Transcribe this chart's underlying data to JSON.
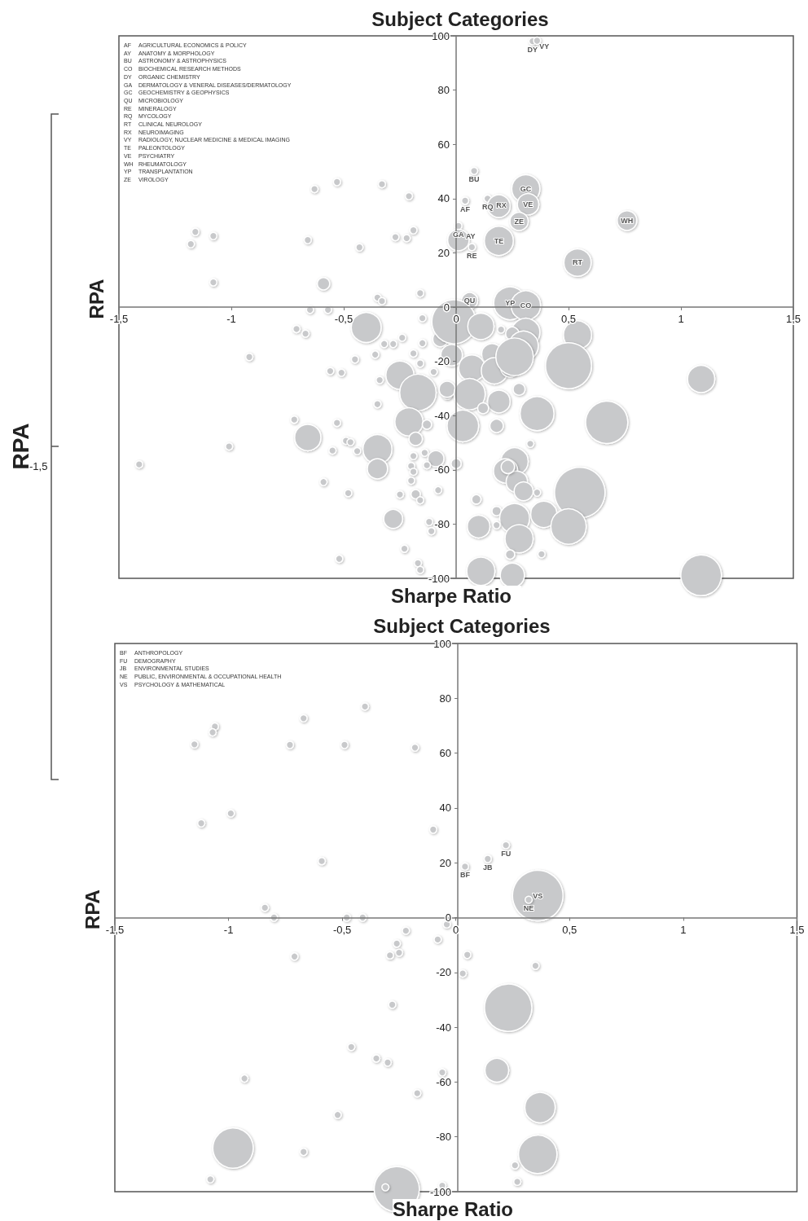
{
  "chart_data": [
    {
      "type": "bubble",
      "title": "Subject Categories",
      "xlabel": "Sharpe Ratio",
      "ylabel": "RPA",
      "color": "#c8c9cb",
      "marker": "circle",
      "xlim": [
        -1.5,
        1.5
      ],
      "xticks": [
        {
          "value": -1.5,
          "label": "-1,5"
        },
        -1,
        {
          "value": -0.5,
          "label": "-0,5"
        },
        0,
        {
          "value": 0.5,
          "label": "0,5"
        },
        1,
        {
          "value": 1.5,
          "label": "1,5"
        }
      ],
      "ylim": [
        -100,
        100
      ],
      "yticks": [
        -100,
        -80,
        -60,
        -40,
        -20,
        0,
        20,
        40,
        60,
        80,
        100
      ],
      "x": [
        -0.63,
        -0.53,
        -0.33,
        -0.21,
        -1.16,
        -1.08,
        -1.18,
        -0.66,
        -0.43,
        -0.27,
        -0.22,
        -0.19,
        -1.08,
        -0.59,
        -0.35,
        -0.33,
        -0.16,
        -0.65,
        -0.57,
        -0.71,
        -0.67,
        -0.4,
        -0.32,
        -0.28,
        -0.24,
        -0.15,
        -0.15,
        -0.19,
        -0.45,
        -0.36,
        -0.92,
        -0.56,
        -0.51,
        -0.16,
        -0.1,
        -0.34,
        -0.25,
        -0.17,
        -0.07,
        -0.04,
        -0.04,
        -0.35,
        -0.72,
        -0.53,
        -0.21,
        -0.13,
        -0.18,
        -0.66,
        -1.01,
        -0.55,
        -0.49,
        -0.47,
        -0.44,
        -0.35,
        -0.35,
        -0.19,
        -0.14,
        -0.09,
        -0.2,
        -0.19,
        -0.13,
        -1.41,
        0,
        -0.59,
        -0.2,
        -0.48,
        -0.25,
        -0.18,
        -0.16,
        -0.08,
        -0.28,
        -0.12,
        -0.11,
        -0.23,
        -0.52,
        -0.17,
        -0.16,
        0.34,
        0.36,
        0.08,
        0.04,
        0.14,
        0.19,
        0.31,
        0.32,
        0.28,
        0.76,
        0.01,
        0.01,
        0.07,
        0.19,
        0.54,
        0.06,
        0.24,
        0.31,
        -0.01,
        0.11,
        0.2,
        0.31,
        0.25,
        0.3,
        -0.02,
        0.16,
        0.07,
        0.17,
        0.24,
        0.26,
        0.28,
        0.06,
        0.19,
        0.12,
        0.03,
        0.18,
        0.36,
        0.54,
        0.5,
        1.09,
        0.67,
        0.33,
        0.26,
        0.22,
        0.27,
        0.3,
        0.36,
        0.55,
        0.09,
        0.18,
        0.26,
        0.39,
        0.5,
        0.1,
        0.18,
        0.28,
        0.24,
        0.38,
        0.11,
        0.25,
        1.09,
        0.23
      ],
      "values": [
        43.5,
        46.1,
        45.3,
        40.9,
        27.7,
        26.2,
        23.2,
        24.7,
        22,
        25.8,
        25.4,
        28.3,
        9.1,
        8.6,
        3.5,
        2.2,
        5.1,
        -1,
        -1,
        -8.1,
        -9.8,
        -7.5,
        -13.6,
        -13.6,
        -11.3,
        -4.1,
        -13.3,
        -17.1,
        -19.3,
        -17.5,
        -18.4,
        -23.6,
        -24.2,
        -20.8,
        -23.9,
        -26.9,
        -25.1,
        -31.5,
        -11.8,
        -32.3,
        -30.3,
        -35.8,
        -41.5,
        -42.7,
        -42.3,
        -43.3,
        -48.6,
        -48.1,
        -51.4,
        -52.9,
        -49.3,
        -49.8,
        -53.1,
        -52.4,
        -59.6,
        -54.9,
        -53.7,
        -55.9,
        -58.6,
        -60.7,
        -58.3,
        -58,
        -57.7,
        -64.5,
        -64,
        -68.6,
        -69.1,
        -69,
        -71.2,
        -67.5,
        -78.1,
        -79.2,
        -82.6,
        -89.1,
        -92.8,
        -94.4,
        -96.9,
        98,
        98.2,
        50.2,
        39.2,
        40,
        37.2,
        43.6,
        37.9,
        31.6,
        31.9,
        29.9,
        24.7,
        22.1,
        24.4,
        16.4,
        2.4,
        1.4,
        0.6,
        -5.4,
        -7.1,
        -8.3,
        -9.3,
        -9.8,
        -14.3,
        -17.7,
        -17.3,
        -22.5,
        -23.5,
        -22.3,
        -18.3,
        -30.3,
        -32.1,
        -34.8,
        -37.3,
        -43.8,
        -43.8,
        -39.3,
        -10.3,
        -21.6,
        -26.5,
        -42.5,
        -50.4,
        -56.9,
        -60.4,
        -64.4,
        -67.9,
        -68.4,
        -68.4,
        -70.9,
        -75.2,
        -77.9,
        -76.4,
        -80.9,
        -80.9,
        -80.4,
        -85.4,
        -91.2,
        -91.1,
        -97.4,
        -98.9,
        -98.9,
        -58.9
      ],
      "sizes": [
        0.02,
        0.02,
        0.02,
        0.02,
        0.02,
        0.02,
        0.02,
        0.02,
        0.02,
        0.02,
        0.02,
        0.02,
        0.02,
        0.06,
        0.02,
        0.02,
        0.02,
        0.02,
        0.02,
        0.02,
        0.02,
        0.35,
        0.02,
        0.02,
        0.02,
        0.02,
        0.02,
        0.02,
        0.02,
        0.02,
        0.02,
        0.02,
        0.02,
        0.02,
        0.02,
        0.02,
        0.31,
        0.52,
        0.09,
        0.034,
        0.1,
        0.02,
        0.02,
        0.02,
        0.31,
        0.034,
        0.07,
        0.27,
        0.02,
        0.02,
        0.02,
        0.02,
        0.02,
        0.33,
        0.16,
        0.02,
        0.02,
        0.1,
        0.02,
        0.02,
        0.02,
        0.02,
        0.04,
        0.02,
        0.02,
        0.02,
        0.02,
        0.034,
        0.02,
        0.02,
        0.14,
        0.02,
        0.02,
        0.02,
        0.02,
        0.02,
        0.02,
        0.02,
        0.02,
        0.02,
        0.02,
        0.02,
        0.2,
        0.31,
        0.18,
        0.13,
        0.15,
        0.02,
        0.18,
        0.02,
        0.33,
        0.29,
        0.1,
        0.42,
        0.34,
        0.76,
        0.27,
        0.02,
        0.31,
        0.07,
        0.34,
        0.18,
        0.17,
        0.27,
        0.27,
        0.14,
        0.55,
        0.055,
        0.38,
        0.2,
        0.046,
        0.39,
        0.07,
        0.45,
        0.31,
        0.83,
        0.29,
        0.7,
        0.02,
        0.29,
        0.23,
        0.18,
        0.14,
        0.02,
        1,
        0.034,
        0.034,
        0.35,
        0.27,
        0.49,
        0.2,
        0.02,
        0.31,
        0.034,
        0.02,
        0.31,
        0.23,
        0.65,
        0.07
      ],
      "relative": false,
      "annotations": [
        "AF AGRICULTURAL ECONOMICS & POLICY",
        "AY ANATOMY & MORPHOLOGY",
        "BU ASTRONOMY & ASTROPHYSICS",
        "CO BIOCHEMICAL RESEARCH METHODS",
        "DY ORGANIC CHEMISTRY",
        "GA DERMATOLOGY & VENERAL DISEASES/DERMATOLOGY",
        "GC GEOCHEMISTRY & GEOPHYSICS",
        "QU MICROBIOLOGY",
        "RE MINERALOGY",
        "RQ MYCOLOGY",
        "RT CLINICAL NEUROLOGY",
        "RX NEUROIMAGING",
        "VY RADIOLOGY, NUCLEAR MEDICINE & MEDICAL IMAGING",
        "TE PALEONTOLOGY",
        "VE PSYCHIATRY",
        "WH RHEUMATOLOGY",
        "YP TRANSPLANTATION",
        "ZE VIROLOGY",
        {
          "text": "DY",
          "x": 0.34,
          "y": 98
        },
        {
          "text": "VY",
          "x": 0.36,
          "y": 98.2
        },
        {
          "text": "BU",
          "x": 0.08,
          "y": 50.2
        },
        {
          "text": "AF",
          "x": 0.04,
          "y": 39.2
        },
        {
          "text": "RQ",
          "x": 0.14,
          "y": 40
        },
        {
          "text": "RX",
          "x": 0.19,
          "y": 37.2
        },
        {
          "text": "GC",
          "x": 0.31,
          "y": 43.6
        },
        {
          "text": "VE",
          "x": 0.32,
          "y": 37.9
        },
        {
          "text": "ZE",
          "x": 0.28,
          "y": 31.6
        },
        {
          "text": "WH",
          "x": 0.76,
          "y": 31.9
        },
        {
          "text": "GA",
          "x": 0.01,
          "y": 29.9
        },
        {
          "text": "AY",
          "x": 0.01,
          "y": 24.7
        },
        {
          "text": "RE",
          "x": 0.07,
          "y": 22.1
        },
        {
          "text": "TE",
          "x": 0.19,
          "y": 24.4
        },
        {
          "text": "RT",
          "x": 0.54,
          "y": 16.4
        },
        {
          "text": "QU",
          "x": 0.06,
          "y": 2.4
        },
        {
          "text": "YP",
          "x": 0.24,
          "y": 1.4
        },
        {
          "text": "CO",
          "x": 0.31,
          "y": 0.6
        }
      ]
    },
    {
      "type": "bubble",
      "title": "Subject Categories",
      "xlabel": "Sharpe Ratio",
      "ylabel": "RPA",
      "color": "#c8c9cb",
      "marker": "circle",
      "xlim": [
        -1.5,
        1.5
      ],
      "xticks": [
        {
          "value": -1.5,
          "label": "-1,5"
        },
        -1,
        {
          "value": -0.5,
          "label": "-0,5"
        },
        0,
        {
          "value": 0.5,
          "label": "0,5"
        },
        1,
        {
          "value": 1.5,
          "label": "1,5"
        }
      ],
      "ylim": [
        -100,
        100
      ],
      "yticks": [
        -100,
        -80,
        -60,
        -40,
        -20,
        0,
        20,
        40,
        60,
        80,
        100
      ],
      "x": [
        -0.4,
        -0.67,
        -1.06,
        -1.07,
        -1.15,
        -0.73,
        -0.49,
        -0.18,
        -0.99,
        -1.12,
        -0.1,
        -0.59,
        -0.84,
        -0.8,
        -0.48,
        -0.41,
        -0.04,
        -0.22,
        -0.08,
        -0.26,
        -0.25,
        -0.29,
        -0.71,
        -0.28,
        -0.46,
        -0.35,
        -0.3,
        -0.06,
        -0.93,
        -0.17,
        -0.52,
        -0.67,
        -1.08,
        -0.98,
        -0.26,
        -0.31,
        -0.06,
        0.22,
        0.14,
        0.04,
        0.36,
        0.32,
        0.05,
        0.03,
        0.35,
        0.23,
        0.18,
        0.37,
        0.36,
        0.26,
        0.27
      ],
      "values": [
        77,
        72.7,
        69.7,
        67.6,
        63.2,
        63,
        63,
        62,
        38,
        34.4,
        32.1,
        20.6,
        3.6,
        0,
        0,
        0,
        -2.5,
        -4.8,
        -8,
        -9.5,
        -12.8,
        -13.8,
        -14.2,
        -31.8,
        -47.2,
        -51.4,
        -52.9,
        -56.5,
        -58.7,
        -64.1,
        -72,
        -85.5,
        -95.5,
        -84.1,
        -99.1,
        -98.4,
        -97.8,
        26.4,
        21.4,
        18.6,
        8,
        6.5,
        -13.6,
        -20.4,
        -17.6,
        -32.9,
        -55.7,
        -69.3,
        -86.4,
        -90.4,
        -96.4
      ],
      "sizes": [
        0.02,
        0.02,
        0.02,
        0.02,
        0.02,
        0.02,
        0.02,
        0.02,
        0.02,
        0.02,
        0.02,
        0.02,
        0.02,
        0.02,
        0.02,
        0.02,
        0.02,
        0.02,
        0.02,
        0.02,
        0.02,
        0.02,
        0.02,
        0.02,
        0.02,
        0.02,
        0.02,
        0.02,
        0.02,
        0.02,
        0.02,
        0.02,
        0.02,
        0.64,
        0.8,
        0.02,
        0.02,
        0.02,
        0.02,
        0.02,
        1,
        0.02,
        0.02,
        0.02,
        0.02,
        0.88,
        0.22,
        0.36,
        0.58,
        0.02,
        0.02
      ],
      "relative": false,
      "annotations": [
        "BF ANTHROPOLOGY",
        "FU DEMOGRAPHY",
        "JB ENVIRONMENTAL STUDIES",
        "NE PUBLIC, ENVIRONMENTAL & OCCUPATIONAL HEALTH",
        "VS PSYCHOLOGY & MATHEMATICAL",
        {
          "text": "FU",
          "x": 0.22,
          "y": 26.4
        },
        {
          "text": "JB",
          "x": 0.14,
          "y": 21.4
        },
        {
          "text": "BF",
          "x": 0.04,
          "y": 18.6
        },
        {
          "text": "VS",
          "x": 0.36,
          "y": 8
        },
        {
          "text": "NE",
          "x": 0.32,
          "y": 6.5
        }
      ]
    },
    {
      "type": "other",
      "ylabel": "RPA",
      "annotations": [
        "-1,5"
      ]
    }
  ]
}
